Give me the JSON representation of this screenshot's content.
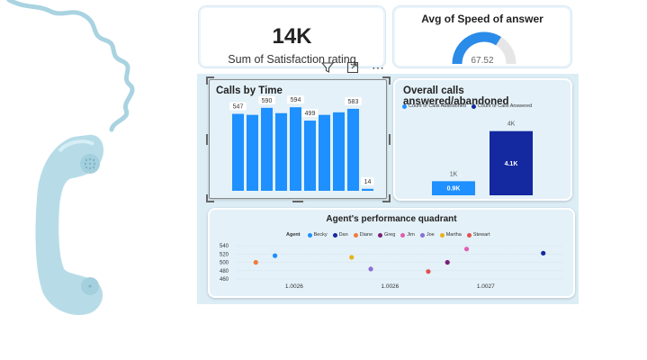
{
  "kpi": {
    "value": "14K",
    "label": "Sum of Satisfaction rating"
  },
  "gauge": {
    "title": "Avg of Speed of answer",
    "value": "67.52",
    "fraction": 0.68,
    "color": "#2b8be8",
    "track": "#e6e6e6"
  },
  "toolbar": {
    "icons": [
      "filter-icon",
      "focus-mode-icon",
      "more-options-icon"
    ],
    "ellipsis": "⋯"
  },
  "calls_by_time": {
    "title": "Calls by Time",
    "chart_data": {
      "type": "bar",
      "values": [
        547,
        540,
        590,
        552,
        594,
        499,
        540,
        558,
        583,
        14
      ],
      "labels": [
        "547",
        "",
        "590",
        "",
        "594",
        "499",
        "",
        "",
        "583",
        "14"
      ],
      "ylim": [
        0,
        640
      ],
      "color": "#1e90ff"
    }
  },
  "answered_abandoned": {
    "title": "Overall calls answered/abandoned",
    "legend": [
      {
        "label": "Count of Calls Abandoned",
        "color": "#1e90ff"
      },
      {
        "label": "Count of Calls Answered",
        "color": "#1428a0"
      }
    ],
    "chart_data": {
      "type": "bar",
      "series": [
        {
          "name": "Count of Calls Abandoned",
          "values": [
            900
          ],
          "label_inside": "0.9K",
          "label_above": "1K",
          "color": "#1e90ff"
        },
        {
          "name": "Count of Calls Answered",
          "values": [
            4100
          ],
          "label_inside": "4.1K",
          "label_above": "4K",
          "color": "#1428a0"
        }
      ],
      "ylim": [
        0,
        4600
      ]
    }
  },
  "quadrant": {
    "title": "Agent's performance quadrant",
    "legend_title": "Agent",
    "chart_data": {
      "type": "scatter",
      "yticks": [
        "540",
        "520",
        "500",
        "480",
        "460"
      ],
      "ylim": [
        460,
        540
      ],
      "xlim": [
        1.00255,
        1.00272
      ],
      "xticks": [
        {
          "label": "1.0026",
          "value": 1.00258
        },
        {
          "label": "1.0026",
          "value": 1.00263
        },
        {
          "label": "1.0027",
          "value": 1.00268
        }
      ],
      "series": [
        {
          "name": "Becky",
          "color": "#1e90ff",
          "x": 1.00257,
          "y": 516
        },
        {
          "name": "Dan",
          "color": "#1428a0",
          "x": 1.00271,
          "y": 522
        },
        {
          "name": "Diane",
          "color": "#f07b3a",
          "x": 1.00256,
          "y": 500
        },
        {
          "name": "Greg",
          "color": "#7a1f7a",
          "x": 1.00266,
          "y": 500
        },
        {
          "name": "Jim",
          "color": "#e05fb0",
          "x": 1.00267,
          "y": 532
        },
        {
          "name": "Joe",
          "color": "#8b6fd6",
          "x": 1.00262,
          "y": 484
        },
        {
          "name": "Martha",
          "color": "#e8b21c",
          "x": 1.00261,
          "y": 512
        },
        {
          "name": "Stewart",
          "color": "#e0504f",
          "x": 1.00265,
          "y": 478
        }
      ]
    }
  }
}
